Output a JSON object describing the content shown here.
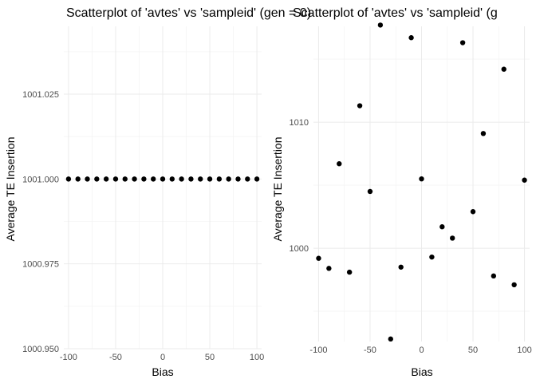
{
  "chart_data": [
    {
      "type": "scatter",
      "title": "Scatterplot of 'avtes' vs 'sampleid' (gen = 0)",
      "xlabel": "Bias",
      "ylabel": "Average TE Insertion",
      "xlim": [
        -105,
        105
      ],
      "ylim": [
        1000.95,
        1001.045
      ],
      "x_ticks": [
        -100,
        -50,
        0,
        50,
        100
      ],
      "x_tick_labels": [
        "-100",
        "-50",
        "0",
        "50",
        "100"
      ],
      "y_ticks": [
        1000.95,
        1000.975,
        1001.0,
        1001.025
      ],
      "y_tick_labels": [
        "1000.950",
        "1000.975",
        "1001.000",
        "1001.025"
      ],
      "grid": true,
      "series": [
        {
          "x": [
            -100,
            -90,
            -80,
            -70,
            -60,
            -50,
            -40,
            -30,
            -20,
            -10,
            0,
            10,
            20,
            30,
            40,
            50,
            60,
            70,
            80,
            90,
            100
          ],
          "y": [
            1001,
            1001,
            1001,
            1001,
            1001,
            1001,
            1001,
            1001,
            1001,
            1001,
            1001,
            1001,
            1001,
            1001,
            1001,
            1001,
            1001,
            1001,
            1001,
            1001,
            1001
          ]
        }
      ]
    },
    {
      "type": "scatter",
      "title": "Scatterplot of 'avtes' vs 'sampleid' (g",
      "xlabel": "Bias",
      "ylabel": "Average TE Insertion",
      "xlim": [
        -105,
        105
      ],
      "ylim": [
        992.6,
        1017.6
      ],
      "x_ticks": [
        -100,
        -50,
        0,
        50,
        100
      ],
      "x_tick_labels": [
        "-100",
        "-50",
        "0",
        "50",
        "100"
      ],
      "y_ticks": [
        1000,
        1010
      ],
      "y_tick_labels": [
        "1000",
        "1010"
      ],
      "grid": true,
      "series": [
        {
          "x": [
            -100,
            -90,
            -80,
            -70,
            -60,
            -50,
            -40,
            -30,
            -20,
            -10,
            0,
            10,
            20,
            30,
            40,
            50,
            60,
            70,
            80,
            90,
            100
          ],
          "y": [
            999.2,
            998.4,
            1006.7,
            998.1,
            1011.3,
            1004.5,
            1017.7,
            992.8,
            998.5,
            1016.7,
            1005.5,
            999.3,
            1001.7,
            1000.8,
            1016.3,
            1002.9,
            1009.1,
            997.8,
            1014.2,
            997.1,
            1005.4
          ]
        }
      ]
    }
  ]
}
